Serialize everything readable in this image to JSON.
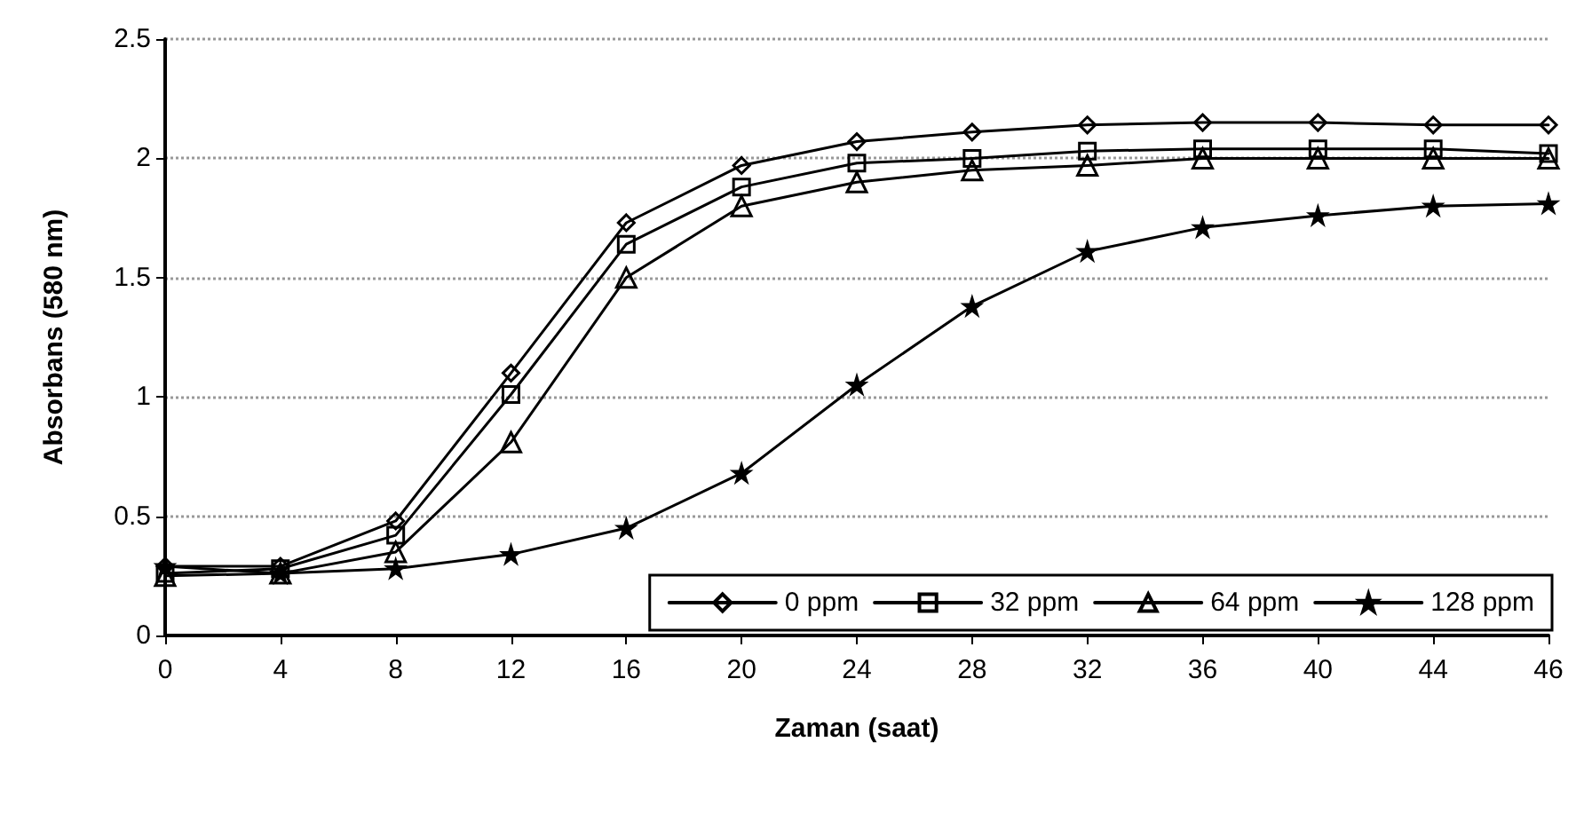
{
  "chart_data": {
    "type": "line",
    "xlabel": "Zaman (saat)",
    "ylabel": "Absorbans (580 nm)",
    "categories": [
      "0",
      "4",
      "8",
      "12",
      "16",
      "20",
      "24",
      "28",
      "32",
      "36",
      "40",
      "44",
      "46"
    ],
    "series": [
      {
        "name": "0 ppm",
        "color": "#000000",
        "marker": "diamond",
        "values": [
          0.29,
          0.29,
          0.48,
          1.1,
          1.73,
          1.97,
          2.07,
          2.11,
          2.14,
          2.15,
          2.15,
          2.14,
          2.14
        ]
      },
      {
        "name": "32 ppm",
        "color": "#000000",
        "marker": "square",
        "values": [
          0.26,
          0.28,
          0.42,
          1.01,
          1.64,
          1.88,
          1.98,
          2.0,
          2.03,
          2.04,
          2.04,
          2.04,
          2.02
        ]
      },
      {
        "name": "64 ppm",
        "color": "#000000",
        "marker": "triangle",
        "values": [
          0.25,
          0.26,
          0.35,
          0.81,
          1.5,
          1.8,
          1.9,
          1.95,
          1.97,
          2.0,
          2.0,
          2.0,
          2.0
        ]
      },
      {
        "name": "128 ppm",
        "color": "#000000",
        "marker": "star",
        "values": [
          0.29,
          0.26,
          0.28,
          0.34,
          0.45,
          0.68,
          1.05,
          1.38,
          1.61,
          1.71,
          1.76,
          1.8,
          1.81
        ]
      }
    ],
    "ylim": [
      0,
      2.5
    ],
    "yticks": [
      0,
      0.5,
      1,
      1.5,
      2,
      2.5
    ],
    "grid": "y",
    "legend": "bottom right",
    "line_style": "solid"
  }
}
